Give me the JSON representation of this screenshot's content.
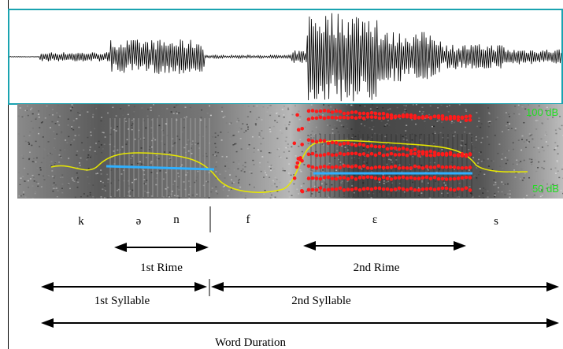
{
  "segments": [
    "k",
    "ə",
    "n",
    "f",
    "ɛ",
    "s"
  ],
  "spans": {
    "first_rime": "1st Rime",
    "second_rime": "2nd Rime",
    "first_syllable": "1st Syllable",
    "second_syllable": "2nd Syllable",
    "word_duration": "Word Duration"
  },
  "db_labels": {
    "top": "100 dB",
    "bottom": "50 dB"
  }
}
